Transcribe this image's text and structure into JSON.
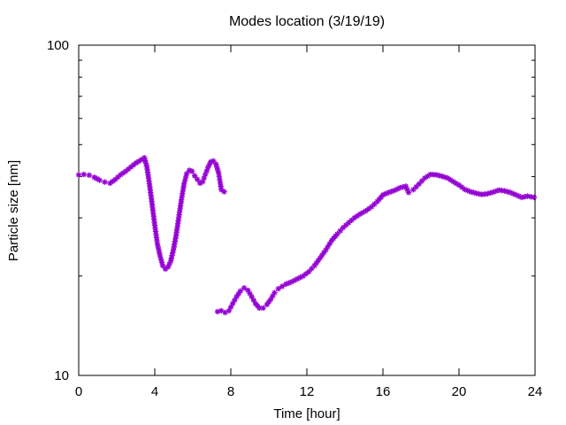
{
  "chart_data": {
    "type": "scatter",
    "title": "Modes location (3/19/19)",
    "xlabel": "Time [hour]",
    "ylabel": "Particle size [nm]",
    "xlim": [
      0,
      24
    ],
    "ylim": [
      10,
      100
    ],
    "y_scale": "log",
    "x_ticks": [
      0,
      4,
      8,
      12,
      16,
      20,
      24
    ],
    "x_tick_labels": [
      "0",
      "4",
      "8",
      "12",
      "16",
      "20",
      "24"
    ],
    "y_ticks": [
      10,
      100
    ],
    "y_tick_labels": [
      "10",
      "100"
    ],
    "y_minor_ticks": [
      20,
      30,
      40,
      50,
      60,
      70,
      80,
      90
    ],
    "grid": false,
    "marker": "asterisk",
    "series": [
      {
        "color": "#9400d3",
        "x": [
          0.0,
          0.27,
          0.55,
          0.82,
          1.1,
          1.37,
          1.65,
          1.92,
          2.2,
          2.47,
          2.75,
          3.02,
          3.3,
          3.45,
          3.58,
          3.72,
          3.86,
          4.0,
          4.14,
          4.28,
          4.42,
          4.56,
          4.7,
          4.84,
          4.98,
          5.12,
          5.26,
          5.4,
          5.54,
          5.68,
          5.82,
          5.96,
          6.1,
          6.24,
          6.38,
          6.52,
          6.66,
          6.8,
          6.94,
          7.08,
          7.22,
          7.36,
          7.5,
          7.65
        ],
        "y": [
          40.5,
          40.6,
          40.4,
          39.8,
          39.0,
          38.5,
          38.2,
          39.2,
          40.5,
          41.5,
          42.8,
          44.0,
          45.0,
          45.6,
          43.0,
          38.0,
          33.0,
          28.5,
          25.0,
          23.0,
          21.5,
          21.0,
          21.3,
          22.2,
          24.0,
          26.5,
          30.0,
          34.0,
          38.0,
          40.8,
          41.8,
          41.5,
          40.2,
          39.2,
          38.2,
          38.6,
          40.6,
          42.6,
          44.3,
          44.6,
          43.6,
          41.0,
          36.5,
          36.0
        ]
      },
      {
        "color": "#9400d3",
        "x": [
          7.3,
          7.5,
          7.7,
          7.9,
          8.1,
          8.3,
          8.5,
          8.7,
          8.9,
          9.1,
          9.3,
          9.5,
          9.7,
          9.9,
          10.1,
          10.3,
          10.5,
          10.7,
          10.9,
          11.2,
          11.5,
          11.8,
          12.1,
          12.4,
          12.7,
          13.0,
          13.3,
          13.6,
          13.9,
          14.2,
          14.5,
          14.8,
          15.1,
          15.4,
          15.7,
          16.0,
          16.3,
          16.6,
          16.9,
          17.2,
          17.35,
          17.6,
          17.9,
          18.2,
          18.5,
          18.8,
          19.1,
          19.4,
          19.7,
          20.0,
          20.3,
          20.6,
          20.9,
          21.2,
          21.5,
          21.8,
          22.1,
          22.4,
          22.7,
          23.0,
          23.3,
          23.6,
          23.95
        ],
        "y": [
          15.6,
          15.7,
          15.5,
          15.7,
          16.5,
          17.3,
          18.0,
          18.4,
          18.1,
          17.3,
          16.5,
          16.0,
          16.0,
          16.4,
          17.0,
          17.8,
          18.3,
          18.6,
          18.9,
          19.2,
          19.6,
          20.0,
          20.6,
          21.5,
          22.7,
          24.0,
          25.6,
          26.8,
          28.0,
          29.0,
          30.0,
          30.8,
          31.5,
          32.4,
          33.6,
          35.2,
          35.8,
          36.3,
          37.0,
          37.4,
          35.8,
          36.5,
          38.0,
          39.6,
          40.6,
          40.5,
          40.1,
          39.6,
          38.6,
          37.7,
          36.6,
          36.0,
          35.6,
          35.3,
          35.5,
          35.9,
          36.4,
          36.2,
          35.8,
          35.2,
          34.6,
          34.9,
          34.6
        ]
      }
    ]
  }
}
